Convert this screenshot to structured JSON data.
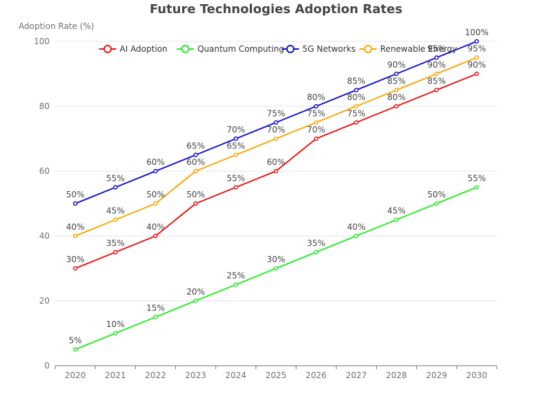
{
  "chart_data": {
    "type": "line",
    "title": "Future Technologies Adoption Rates",
    "xlabel": "",
    "ylabel": "Adoption Rate (%)",
    "categories": [
      "2020",
      "2021",
      "2022",
      "2023",
      "2024",
      "2025",
      "2026",
      "2027",
      "2028",
      "2029",
      "2030"
    ],
    "ylim": [
      0,
      100
    ],
    "yticks": [
      0,
      20,
      40,
      60,
      80,
      100
    ],
    "grid": true,
    "legend_position": "top",
    "data_label_suffix": "%",
    "series": [
      {
        "name": "AI Adoption",
        "color": "#ee1111",
        "values": [
          30,
          35,
          40,
          50,
          55,
          60,
          70,
          75,
          80,
          85,
          90
        ]
      },
      {
        "name": "Quantum Computing",
        "color": "#22ee22",
        "values": [
          5,
          10,
          15,
          20,
          25,
          30,
          35,
          40,
          45,
          50,
          55
        ]
      },
      {
        "name": "5G Networks",
        "color": "#1111cc",
        "values": [
          50,
          55,
          60,
          65,
          70,
          75,
          80,
          85,
          90,
          95,
          100
        ]
      },
      {
        "name": "Renewable Energy",
        "color": "#ffa500",
        "values": [
          40,
          45,
          50,
          60,
          65,
          70,
          75,
          80,
          85,
          90,
          95
        ]
      }
    ]
  }
}
